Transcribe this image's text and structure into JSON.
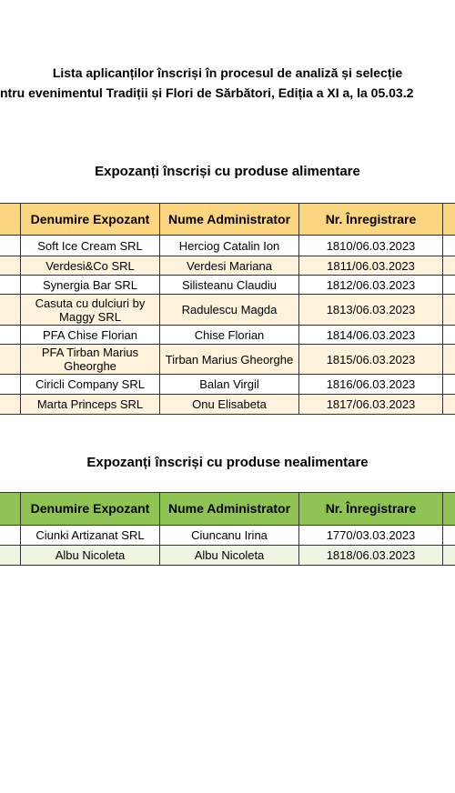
{
  "header": {
    "title_line1": "Lista aplicanților înscriși în procesul de analiză și selecție",
    "title_line2": "ntru evenimentul Tradiții și Flori de Sărbători, Ediția a XI a, la 05.03.2"
  },
  "sections": [
    {
      "heading": "Expozanți înscriși cu produse alimentare",
      "columns": [
        "Denumire Expozant",
        "Nume Administrator",
        "Nr. Înregistrare"
      ],
      "rows": [
        [
          "Soft Ice Cream SRL",
          "Herciog Catalin Ion",
          "1810/06.03.2023"
        ],
        [
          "Verdesi&Co SRL",
          "Verdesi Mariana",
          "1811/06.03.2023"
        ],
        [
          "Synergia Bar SRL",
          "Silisteanu Claudiu",
          "1812/06.03.2023"
        ],
        [
          "Casuta cu dulciuri by Maggy SRL",
          "Radulescu Magda",
          "1813/06.03.2023"
        ],
        [
          "PFA Chise Florian",
          "Chise Florian",
          "1814/06.03.2023"
        ],
        [
          "PFA Tirban Marius Gheorghe",
          "Tirban Marius Gheorghe",
          "1815/06.03.2023"
        ],
        [
          "Ciricli Company SRL",
          "Balan Virgil",
          "1816/06.03.2023"
        ],
        [
          "Marta Princeps SRL",
          "Onu Elisabeta",
          "1817/06.03.2023"
        ]
      ]
    },
    {
      "heading": "Expozanți înscriși cu produse nealimentare",
      "columns": [
        "Denumire Expozant",
        "Nume Administrator",
        "Nr. Înregistrare"
      ],
      "rows": [
        [
          "Ciunki Artizanat SRL",
          "Ciuncanu Irina",
          "1770/03.03.2023"
        ],
        [
          "Albu Nicoleta",
          "Albu Nicoleta",
          "1818/06.03.2023"
        ]
      ]
    }
  ]
}
